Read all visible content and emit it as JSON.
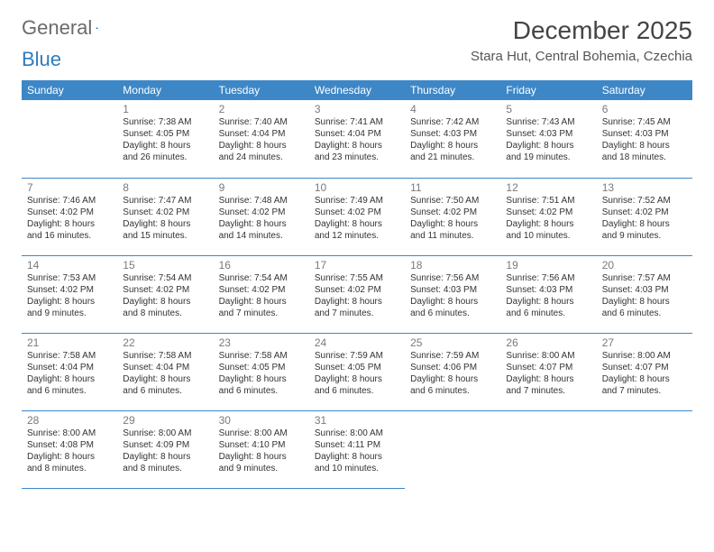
{
  "brand": {
    "word1": "General",
    "word2": "Blue"
  },
  "title": "December 2025",
  "location": "Stara Hut, Central Bohemia, Czechia",
  "colors": {
    "header_bg": "#3d87c7",
    "header_text": "#ffffff",
    "rule": "#3d87c7",
    "brand_gray": "#6b6b6b",
    "brand_blue": "#2f7bbf",
    "daynum": "#7a7a7a",
    "text": "#333333",
    "background": "#ffffff"
  },
  "weekdays": [
    "Sunday",
    "Monday",
    "Tuesday",
    "Wednesday",
    "Thursday",
    "Friday",
    "Saturday"
  ],
  "weeks": [
    [
      null,
      {
        "n": "1",
        "sr": "7:38 AM",
        "ss": "4:05 PM",
        "dl": "8 hours and 26 minutes."
      },
      {
        "n": "2",
        "sr": "7:40 AM",
        "ss": "4:04 PM",
        "dl": "8 hours and 24 minutes."
      },
      {
        "n": "3",
        "sr": "7:41 AM",
        "ss": "4:04 PM",
        "dl": "8 hours and 23 minutes."
      },
      {
        "n": "4",
        "sr": "7:42 AM",
        "ss": "4:03 PM",
        "dl": "8 hours and 21 minutes."
      },
      {
        "n": "5",
        "sr": "7:43 AM",
        "ss": "4:03 PM",
        "dl": "8 hours and 19 minutes."
      },
      {
        "n": "6",
        "sr": "7:45 AM",
        "ss": "4:03 PM",
        "dl": "8 hours and 18 minutes."
      }
    ],
    [
      {
        "n": "7",
        "sr": "7:46 AM",
        "ss": "4:02 PM",
        "dl": "8 hours and 16 minutes."
      },
      {
        "n": "8",
        "sr": "7:47 AM",
        "ss": "4:02 PM",
        "dl": "8 hours and 15 minutes."
      },
      {
        "n": "9",
        "sr": "7:48 AM",
        "ss": "4:02 PM",
        "dl": "8 hours and 14 minutes."
      },
      {
        "n": "10",
        "sr": "7:49 AM",
        "ss": "4:02 PM",
        "dl": "8 hours and 12 minutes."
      },
      {
        "n": "11",
        "sr": "7:50 AM",
        "ss": "4:02 PM",
        "dl": "8 hours and 11 minutes."
      },
      {
        "n": "12",
        "sr": "7:51 AM",
        "ss": "4:02 PM",
        "dl": "8 hours and 10 minutes."
      },
      {
        "n": "13",
        "sr": "7:52 AM",
        "ss": "4:02 PM",
        "dl": "8 hours and 9 minutes."
      }
    ],
    [
      {
        "n": "14",
        "sr": "7:53 AM",
        "ss": "4:02 PM",
        "dl": "8 hours and 9 minutes."
      },
      {
        "n": "15",
        "sr": "7:54 AM",
        "ss": "4:02 PM",
        "dl": "8 hours and 8 minutes."
      },
      {
        "n": "16",
        "sr": "7:54 AM",
        "ss": "4:02 PM",
        "dl": "8 hours and 7 minutes."
      },
      {
        "n": "17",
        "sr": "7:55 AM",
        "ss": "4:02 PM",
        "dl": "8 hours and 7 minutes."
      },
      {
        "n": "18",
        "sr": "7:56 AM",
        "ss": "4:03 PM",
        "dl": "8 hours and 6 minutes."
      },
      {
        "n": "19",
        "sr": "7:56 AM",
        "ss": "4:03 PM",
        "dl": "8 hours and 6 minutes."
      },
      {
        "n": "20",
        "sr": "7:57 AM",
        "ss": "4:03 PM",
        "dl": "8 hours and 6 minutes."
      }
    ],
    [
      {
        "n": "21",
        "sr": "7:58 AM",
        "ss": "4:04 PM",
        "dl": "8 hours and 6 minutes."
      },
      {
        "n": "22",
        "sr": "7:58 AM",
        "ss": "4:04 PM",
        "dl": "8 hours and 6 minutes."
      },
      {
        "n": "23",
        "sr": "7:58 AM",
        "ss": "4:05 PM",
        "dl": "8 hours and 6 minutes."
      },
      {
        "n": "24",
        "sr": "7:59 AM",
        "ss": "4:05 PM",
        "dl": "8 hours and 6 minutes."
      },
      {
        "n": "25",
        "sr": "7:59 AM",
        "ss": "4:06 PM",
        "dl": "8 hours and 6 minutes."
      },
      {
        "n": "26",
        "sr": "8:00 AM",
        "ss": "4:07 PM",
        "dl": "8 hours and 7 minutes."
      },
      {
        "n": "27",
        "sr": "8:00 AM",
        "ss": "4:07 PM",
        "dl": "8 hours and 7 minutes."
      }
    ],
    [
      {
        "n": "28",
        "sr": "8:00 AM",
        "ss": "4:08 PM",
        "dl": "8 hours and 8 minutes."
      },
      {
        "n": "29",
        "sr": "8:00 AM",
        "ss": "4:09 PM",
        "dl": "8 hours and 8 minutes."
      },
      {
        "n": "30",
        "sr": "8:00 AM",
        "ss": "4:10 PM",
        "dl": "8 hours and 9 minutes."
      },
      {
        "n": "31",
        "sr": "8:00 AM",
        "ss": "4:11 PM",
        "dl": "8 hours and 10 minutes."
      },
      null,
      null,
      null
    ]
  ],
  "labels": {
    "sunrise": "Sunrise:",
    "sunset": "Sunset:",
    "daylight": "Daylight:"
  }
}
